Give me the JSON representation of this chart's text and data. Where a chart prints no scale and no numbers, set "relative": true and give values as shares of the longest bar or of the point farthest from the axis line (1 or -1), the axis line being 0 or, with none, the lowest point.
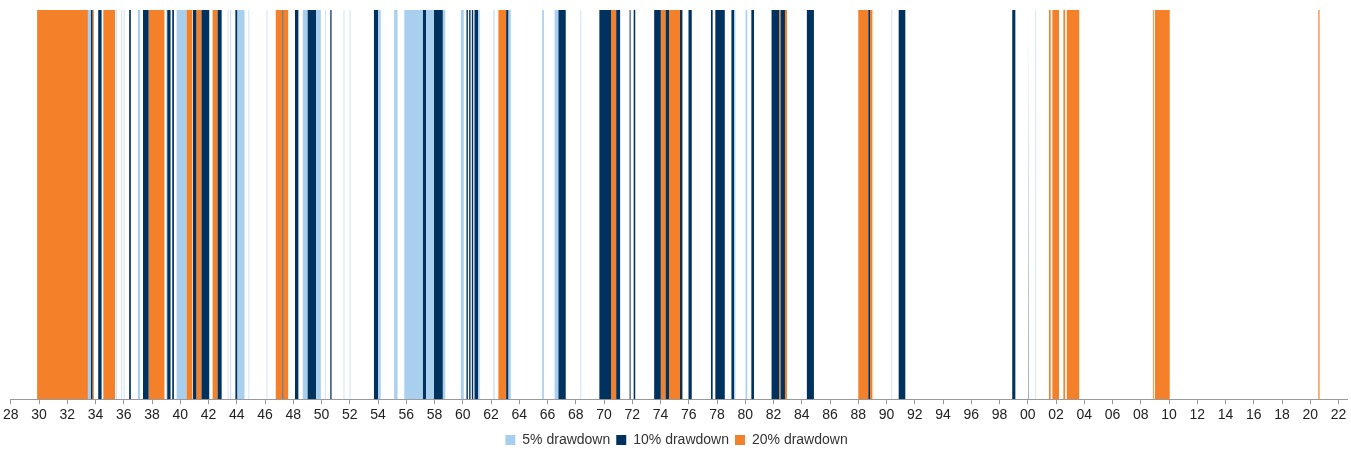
{
  "chart_data": {
    "type": "area",
    "relative": true,
    "legend": "bottom",
    "xlim": [
      1928,
      2022.6
    ],
    "xticks": [
      {
        "value": 1928,
        "label": "28"
      },
      {
        "value": 1930,
        "label": "30"
      },
      {
        "value": 1932,
        "label": "32"
      },
      {
        "value": 1934,
        "label": "34"
      },
      {
        "value": 1936,
        "label": "36"
      },
      {
        "value": 1938,
        "label": "38"
      },
      {
        "value": 1940,
        "label": "40"
      },
      {
        "value": 1942,
        "label": "42"
      },
      {
        "value": 1944,
        "label": "44"
      },
      {
        "value": 1946,
        "label": "46"
      },
      {
        "value": 1948,
        "label": "48"
      },
      {
        "value": 1950,
        "label": "50"
      },
      {
        "value": 1952,
        "label": "52"
      },
      {
        "value": 1954,
        "label": "54"
      },
      {
        "value": 1956,
        "label": "56"
      },
      {
        "value": 1958,
        "label": "58"
      },
      {
        "value": 1960,
        "label": "60"
      },
      {
        "value": 1962,
        "label": "62"
      },
      {
        "value": 1964,
        "label": "64"
      },
      {
        "value": 1966,
        "label": "66"
      },
      {
        "value": 1968,
        "label": "68"
      },
      {
        "value": 1970,
        "label": "70"
      },
      {
        "value": 1972,
        "label": "72"
      },
      {
        "value": 1974,
        "label": "74"
      },
      {
        "value": 1976,
        "label": "76"
      },
      {
        "value": 1978,
        "label": "78"
      },
      {
        "value": 1980,
        "label": "80"
      },
      {
        "value": 1982,
        "label": "82"
      },
      {
        "value": 1984,
        "label": "84"
      },
      {
        "value": 1986,
        "label": "86"
      },
      {
        "value": 1988,
        "label": "88"
      },
      {
        "value": 1990,
        "label": "90"
      },
      {
        "value": 1992,
        "label": "92"
      },
      {
        "value": 1994,
        "label": "94"
      },
      {
        "value": 1996,
        "label": "96"
      },
      {
        "value": 1998,
        "label": "98"
      },
      {
        "value": 2000,
        "label": "00"
      },
      {
        "value": 2002,
        "label": "02"
      },
      {
        "value": 2004,
        "label": "04"
      },
      {
        "value": 2006,
        "label": "06"
      },
      {
        "value": 2008,
        "label": "08"
      },
      {
        "value": 2010,
        "label": "10"
      },
      {
        "value": 2012,
        "label": "12"
      },
      {
        "value": 2014,
        "label": "14"
      },
      {
        "value": 2016,
        "label": "16"
      },
      {
        "value": 2018,
        "label": "18"
      },
      {
        "value": 2020,
        "label": "20"
      },
      {
        "value": 2022,
        "label": "22"
      }
    ],
    "series": [
      {
        "name": "5% drawdown",
        "color": "#a9cfee",
        "x": [
          1929.15,
          1929.15,
          1929.2,
          1929.2,
          1929.3,
          1929.3,
          1929.35,
          1929.35,
          1929.45,
          1929.45,
          1929.5,
          1929.5,
          1933.45,
          1933.45,
          1933.64,
          1933.64,
          1935.48,
          1935.48,
          1935.52,
          1935.52,
          1935.84,
          1935.84,
          1935.88,
          1935.88,
          1936,
          1936,
          1936.04,
          1936.04,
          1937,
          1937,
          1937.16,
          1937.16,
          1939.02,
          1939.02,
          1939.07,
          1939.07,
          1939.74,
          1939.74,
          1940.43,
          1940.43,
          1943.36,
          1943.36,
          1943.4,
          1943.4,
          1943.55,
          1943.55,
          1943.6,
          1943.6,
          1944.05,
          1944.05,
          1944.55,
          1944.55,
          1944.84,
          1944.84,
          1944.88,
          1944.88,
          1945.31,
          1945.31,
          1945.35,
          1945.35,
          1945.65,
          1945.65,
          1945.69,
          1945.69,
          1946.12,
          1946.12,
          1946.16,
          1946.16,
          1946.31,
          1946.31,
          1946.35,
          1946.35,
          1948.67,
          1948.67,
          1949,
          1949,
          1949.62,
          1949.62,
          1949.95,
          1949.95,
          1950.24,
          1950.24,
          1950.28,
          1950.28,
          1950.98,
          1950.98,
          1951.02,
          1951.02,
          1951.57,
          1951.57,
          1951.61,
          1951.61,
          1952,
          1952,
          1952.04,
          1952.04,
          1952.24,
          1952.24,
          1952.28,
          1952.28,
          1952.4,
          1952.4,
          1952.44,
          1952.44,
          1952.95,
          1952.95,
          1952.99,
          1952.99,
          1954,
          1954,
          1954.19,
          1954.19,
          1955.14,
          1955.14,
          1955.38,
          1955.38,
          1955.86,
          1955.86,
          1957.16,
          1957.16,
          1957.4,
          1957.4,
          1957.95,
          1957.95,
          1958.59,
          1958.59,
          1958.76,
          1958.76,
          1959.86,
          1959.86,
          1960.07,
          1960.07,
          1961.09,
          1961.09,
          1961.2,
          1961.2,
          1962.18,
          1962.18,
          1962.24,
          1962.24,
          1963.24,
          1963.24,
          1963.4,
          1963.4,
          1965.62,
          1965.62,
          1965.74,
          1965.74,
          1966.5,
          1966.5,
          1966.76,
          1966.76,
          1968.34,
          1968.34,
          1968.38,
          1968.38,
          1979.21,
          1979.21,
          1979.3,
          1979.3,
          1980.02,
          1980.02,
          1980.14,
          1980.14,
          1990.36,
          1990.36,
          1990.4,
          1990.4,
          1998.05,
          1998.05,
          1998.1,
          1998.1,
          2000.55,
          2000.55,
          2000.6,
          2000.6
        ],
        "values": [
          0,
          1,
          1,
          0,
          0,
          1,
          1,
          0,
          0,
          1,
          1,
          0,
          0,
          1,
          1,
          0,
          0,
          1,
          1,
          0,
          0,
          1,
          1,
          0,
          0,
          1,
          1,
          0,
          0,
          1,
          1,
          0,
          0,
          1,
          1,
          0,
          0,
          1,
          1,
          0,
          0,
          1,
          1,
          0,
          0,
          1,
          1,
          0,
          0,
          1,
          1,
          0,
          0,
          1,
          1,
          0,
          0,
          1,
          1,
          0,
          0,
          1,
          1,
          0,
          0,
          1,
          1,
          0,
          0,
          1,
          1,
          0,
          0,
          1,
          1,
          0,
          0,
          1,
          1,
          0,
          0,
          1,
          1,
          0,
          0,
          1,
          1,
          0,
          0,
          1,
          1,
          0,
          0,
          1,
          1,
          0,
          0,
          1,
          1,
          0,
          0,
          1,
          1,
          0,
          0,
          1,
          1,
          0,
          0,
          1,
          1,
          0,
          0,
          1,
          1,
          0,
          0,
          1,
          1,
          0,
          0,
          1,
          1,
          0,
          0,
          1,
          1,
          0,
          0,
          1,
          1,
          0,
          0,
          1,
          1,
          0,
          0,
          1,
          1,
          0,
          0,
          1,
          1,
          0,
          0,
          1,
          1,
          0,
          0,
          1,
          1,
          0,
          0,
          1,
          1,
          0,
          0,
          1,
          1,
          0,
          0,
          1,
          1,
          0,
          0,
          1,
          1,
          0,
          0,
          1,
          1,
          0,
          0,
          1,
          1,
          0
        ]
      },
      {
        "name": "10% drawdown",
        "color": "#00325f",
        "x": [
          1933.64,
          1933.64,
          1933.79,
          1933.79,
          1934.19,
          1934.19,
          1934.43,
          1934.43,
          1936.38,
          1936.38,
          1936.5,
          1936.5,
          1937.36,
          1937.36,
          1937.76,
          1937.76,
          1939.07,
          1939.07,
          1939.31,
          1939.31,
          1939.43,
          1939.43,
          1939.55,
          1939.55,
          1940.9,
          1940.9,
          1941.14,
          1941.14,
          1941.5,
          1941.5,
          1942.05,
          1942.05,
          1942.64,
          1942.64,
          1942.93,
          1942.93,
          1943.9,
          1943.9,
          1944.05,
          1944.05,
          1947.24,
          1947.24,
          1947.29,
          1947.29,
          1948.12,
          1948.12,
          1948.36,
          1948.36,
          1949,
          1949,
          1949.62,
          1949.62,
          1950.62,
          1950.62,
          1950.71,
          1950.71,
          1953.71,
          1953.71,
          1954,
          1954,
          1957.16,
          1957.16,
          1957.4,
          1957.4,
          1957.95,
          1957.95,
          1958.59,
          1958.59,
          1960.26,
          1960.26,
          1960.36,
          1960.36,
          1960.45,
          1960.45,
          1960.55,
          1960.55,
          1960.64,
          1960.64,
          1960.74,
          1960.74,
          1960.83,
          1960.83,
          1961.09,
          1961.09,
          1963.07,
          1963.07,
          1963.24,
          1963.24,
          1966.76,
          1966.76,
          1967.29,
          1967.29,
          1969.67,
          1969.67,
          1970.5,
          1970.5,
          1970.86,
          1970.86,
          1971.14,
          1971.14,
          1971.81,
          1971.81,
          1971.88,
          1971.88,
          1972.1,
          1972.1,
          1972.21,
          1972.21,
          1973.55,
          1973.55,
          1974.02,
          1974.02,
          1974.36,
          1974.36,
          1974.6,
          1974.6,
          1975.38,
          1975.38,
          1975.55,
          1975.55,
          1975.98,
          1975.98,
          1976.21,
          1976.21,
          1977.57,
          1977.57,
          1977.69,
          1977.69,
          1977.88,
          1977.88,
          1978.55,
          1978.55,
          1979.02,
          1979.02,
          1979.21,
          1979.21,
          1980.43,
          1980.43,
          1980.62,
          1980.62,
          1981.86,
          1981.86,
          1982.4,
          1982.4,
          1982.5,
          1982.5,
          1982.81,
          1982.81,
          1984.36,
          1984.36,
          1984.86,
          1984.86,
          1988.71,
          1988.71,
          1988.83,
          1988.83,
          1990.86,
          1990.86,
          1991.33,
          1991.33,
          1998.9,
          1998.9,
          1999.12,
          1999.12,
          2000.02,
          2000.02,
          2000.08,
          2000.08
        ],
        "values": [
          0,
          1,
          1,
          0,
          0,
          1,
          1,
          0,
          0,
          1,
          1,
          0,
          0,
          1,
          1,
          0,
          0,
          1,
          1,
          0,
          0,
          1,
          1,
          0,
          0,
          1,
          1,
          0,
          0,
          1,
          1,
          0,
          0,
          1,
          1,
          0,
          0,
          1,
          1,
          0,
          0,
          1,
          1,
          0,
          0,
          1,
          1,
          0,
          0,
          1,
          1,
          0,
          0,
          1,
          1,
          0,
          0,
          1,
          1,
          0,
          0,
          1,
          1,
          0,
          0,
          1,
          1,
          0,
          0,
          1,
          1,
          0,
          0,
          1,
          1,
          0,
          0,
          1,
          1,
          0,
          0,
          1,
          1,
          0,
          0,
          1,
          1,
          0,
          0,
          1,
          1,
          0,
          0,
          1,
          1,
          0,
          0,
          1,
          1,
          0,
          0,
          1,
          1,
          0,
          0,
          1,
          1,
          0,
          0,
          1,
          1,
          0,
          0,
          1,
          1,
          0,
          0,
          1,
          1,
          0,
          0,
          1,
          1,
          0,
          0,
          1,
          1,
          0,
          0,
          1,
          1,
          0,
          0,
          1,
          1,
          0,
          0,
          1,
          1,
          0,
          0,
          1,
          1,
          0,
          0,
          1,
          1,
          0,
          0,
          1,
          1,
          0,
          0,
          1,
          1,
          0,
          0,
          1,
          1,
          0,
          0,
          1,
          1,
          0,
          0,
          1,
          1,
          0
        ]
      },
      {
        "name": "20% drawdown",
        "color": "#f5802a",
        "x": [
          1929.86,
          1929.86,
          1933.48,
          1933.48,
          1933.79,
          1933.79,
          1933.88,
          1933.88,
          1934.55,
          1934.55,
          1935.38,
          1935.38,
          1937.76,
          1937.76,
          1938.88,
          1938.88,
          1940.43,
          1940.43,
          1940.86,
          1940.86,
          1941.14,
          1941.14,
          1941.5,
          1941.5,
          1942.29,
          1942.29,
          1942.64,
          1942.64,
          1946.76,
          1946.76,
          1947.24,
          1947.24,
          1947.29,
          1947.29,
          1947.64,
          1947.64,
          1962.52,
          1962.52,
          1963.07,
          1963.07,
          1970.5,
          1970.5,
          1970.86,
          1970.86,
          1974.02,
          1974.02,
          1974.36,
          1974.36,
          1974.6,
          1974.6,
          1975.38,
          1975.38,
          1982.4,
          1982.4,
          1982.5,
          1982.5,
          1982.81,
          1982.81,
          1982.95,
          1982.95,
          1988,
          1988,
          1988.71,
          1988.71,
          1988.83,
          1988.83,
          1989,
          1989,
          2001.5,
          2001.5,
          2001.62,
          2001.62,
          2001.74,
          2001.74,
          2002.21,
          2002.21,
          2002.52,
          2002.52,
          2002.64,
          2002.64,
          2002.76,
          2002.76,
          2003.64,
          2003.64,
          2008.86,
          2008.86,
          2008.92,
          2008.92,
          2009,
          2009,
          2010.05,
          2010.05,
          2020.57,
          2020.57,
          2020.67,
          2020.67
        ],
        "values": [
          0,
          1,
          1,
          0,
          0,
          1,
          1,
          0,
          0,
          1,
          1,
          0,
          0,
          1,
          1,
          0,
          0,
          1,
          1,
          0,
          0,
          1,
          1,
          0,
          0,
          1,
          1,
          0,
          0,
          1,
          1,
          0,
          0,
          1,
          1,
          0,
          0,
          1,
          1,
          0,
          0,
          1,
          1,
          0,
          0,
          1,
          1,
          0,
          0,
          1,
          1,
          0,
          0,
          1,
          1,
          0,
          0,
          1,
          1,
          0,
          0,
          1,
          1,
          0,
          0,
          1,
          1,
          0,
          0,
          1,
          1,
          0,
          0,
          1,
          1,
          0,
          0,
          1,
          1,
          0,
          0,
          1,
          1,
          0,
          0,
          1,
          1,
          0,
          0,
          1,
          1,
          0,
          0,
          1,
          1,
          0
        ]
      }
    ]
  }
}
